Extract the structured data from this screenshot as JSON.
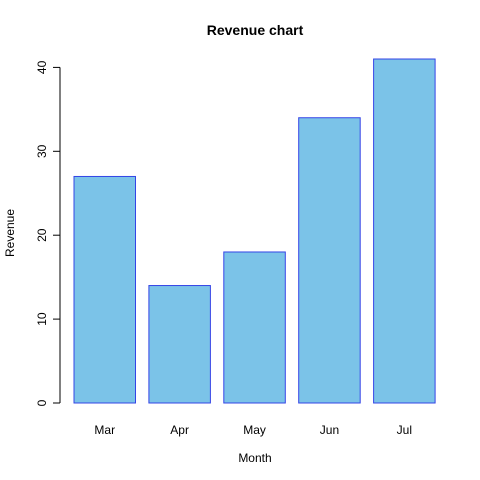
{
  "chart_data": {
    "type": "bar",
    "title": "Revenue chart",
    "xlabel": "Month",
    "ylabel": "Revenue",
    "categories": [
      "Mar",
      "Apr",
      "May",
      "Jun",
      "Jul"
    ],
    "values": [
      27,
      14,
      18,
      34,
      41
    ],
    "ylim": [
      0,
      41
    ],
    "yticks": [
      "0",
      "10",
      "20",
      "30",
      "40"
    ],
    "grid": false,
    "legend": "none",
    "colors": {
      "bar_fill": "#7bc3e8",
      "bar_stroke": "#3344e6"
    }
  }
}
